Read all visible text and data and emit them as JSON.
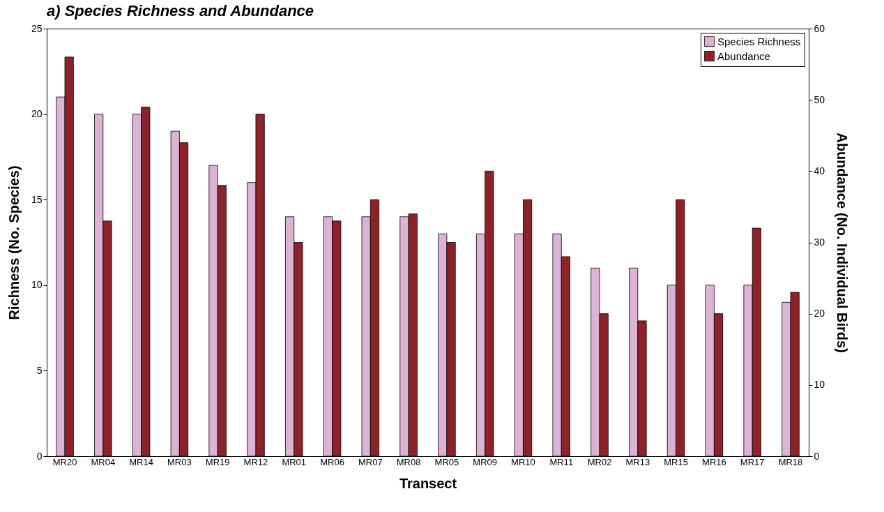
{
  "chart_data": {
    "type": "bar",
    "title": "a) Species Richness and Abundance",
    "xlabel": "Transect",
    "ylabel": "Richness (No. Species)",
    "y2label": "Abundance (No. Individual Birds)",
    "categories": [
      "MR20",
      "MR04",
      "MR14",
      "MR03",
      "MR19",
      "MR12",
      "MR01",
      "MR06",
      "MR07",
      "MR08",
      "MR05",
      "MR09",
      "MR10",
      "MR11",
      "MR02",
      "MR13",
      "MR15",
      "MR16",
      "MR17",
      "MR18"
    ],
    "series": [
      {
        "name": "Species Richness",
        "color": "#dcb3d2",
        "values": [
          21,
          20,
          20,
          19,
          17,
          16,
          14,
          14,
          14,
          14,
          13,
          13,
          13,
          13,
          11,
          11,
          10,
          10,
          10,
          9
        ]
      },
      {
        "name": "Abundance",
        "color": "#8b2328",
        "axis": "y2",
        "values": [
          56,
          33,
          49,
          44,
          38,
          48,
          30,
          33,
          36,
          34,
          30,
          40,
          36,
          28,
          20,
          19,
          36,
          20,
          32,
          23
        ]
      }
    ],
    "ylim": [
      0,
      25
    ],
    "yticks": [
      0,
      5,
      10,
      15,
      20,
      25
    ],
    "y2lim": [
      0,
      60
    ],
    "y2ticks": [
      0,
      10,
      20,
      30,
      40,
      50,
      60
    ],
    "legend": "top right",
    "grid": false
  }
}
